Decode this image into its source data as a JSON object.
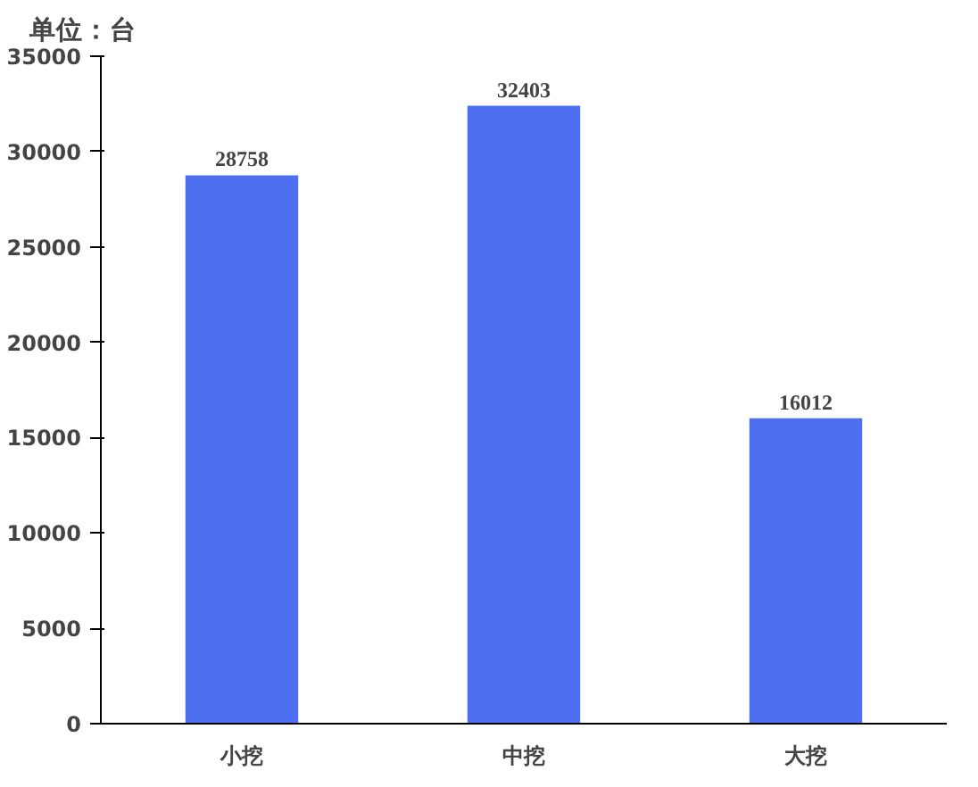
{
  "chart_data": {
    "type": "bar",
    "annotations": [
      "单位：台"
    ],
    "categories": [
      "小挖",
      "中挖",
      "大挖"
    ],
    "values": [
      28758,
      32403,
      16012
    ],
    "color": "#4d6ff0",
    "ylim": [
      0,
      35000
    ],
    "yticks": [
      0,
      5000,
      10000,
      15000,
      20000,
      25000,
      30000,
      35000
    ],
    "data_labels": true,
    "grid": false
  }
}
